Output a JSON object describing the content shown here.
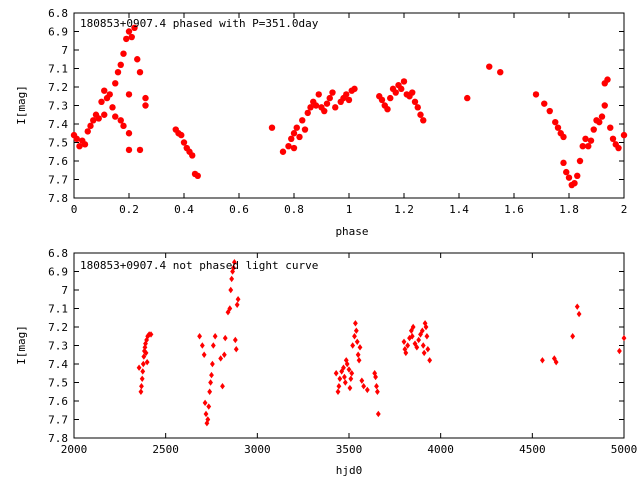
{
  "colors": {
    "marker": "#ff0000",
    "axis": "#000000",
    "background": "#ffffff"
  },
  "chart_data": [
    {
      "type": "scatter",
      "title": "180853+0907.4 phased with P=351.0day",
      "xlabel": "phase",
      "ylabel": "I[mag]",
      "xlim": [
        0,
        2
      ],
      "ylim": [
        6.8,
        7.8
      ],
      "y_inverted": true,
      "grid": false,
      "marker": "filled circle",
      "xticks": [
        "0",
        "0.2",
        "0.4",
        "0.6",
        "0.8",
        "1",
        "1.2",
        "1.4",
        "1.6",
        "1.8",
        "2"
      ],
      "yticks": [
        "6.8",
        "6.9",
        "7",
        "7.1",
        "7.2",
        "7.3",
        "7.4",
        "7.5",
        "7.6",
        "7.7",
        "7.8"
      ],
      "series": [
        {
          "points": [
            [
              0.0,
              7.46
            ],
            [
              0.01,
              7.48
            ],
            [
              0.02,
              7.52
            ],
            [
              0.03,
              7.49
            ],
            [
              0.04,
              7.51
            ],
            [
              0.05,
              7.44
            ],
            [
              0.06,
              7.41
            ],
            [
              0.07,
              7.38
            ],
            [
              0.08,
              7.35
            ],
            [
              0.09,
              7.37
            ],
            [
              0.1,
              7.28
            ],
            [
              0.11,
              7.22
            ],
            [
              0.11,
              7.35
            ],
            [
              0.12,
              7.26
            ],
            [
              0.13,
              7.24
            ],
            [
              0.14,
              7.31
            ],
            [
              0.15,
              7.36
            ],
            [
              0.15,
              7.18
            ],
            [
              0.16,
              7.12
            ],
            [
              0.17,
              7.08
            ],
            [
              0.17,
              7.38
            ],
            [
              0.18,
              7.02
            ],
            [
              0.18,
              7.41
            ],
            [
              0.19,
              6.94
            ],
            [
              0.2,
              6.9
            ],
            [
              0.2,
              7.45
            ],
            [
              0.21,
              6.93
            ],
            [
              0.22,
              6.88
            ],
            [
              0.23,
              7.05
            ],
            [
              0.24,
              7.12
            ],
            [
              0.26,
              7.3
            ],
            [
              0.26,
              7.26
            ],
            [
              0.24,
              7.54
            ],
            [
              0.2,
              7.54
            ],
            [
              0.2,
              7.24
            ],
            [
              0.37,
              7.43
            ],
            [
              0.38,
              7.45
            ],
            [
              0.39,
              7.46
            ],
            [
              0.4,
              7.5
            ],
            [
              0.41,
              7.53
            ],
            [
              0.42,
              7.55
            ],
            [
              0.43,
              7.57
            ],
            [
              0.44,
              7.67
            ],
            [
              0.45,
              7.68
            ],
            [
              0.72,
              7.42
            ],
            [
              0.76,
              7.55
            ],
            [
              0.78,
              7.52
            ],
            [
              0.79,
              7.48
            ],
            [
              0.8,
              7.45
            ],
            [
              0.8,
              7.53
            ],
            [
              0.81,
              7.42
            ],
            [
              0.82,
              7.47
            ],
            [
              0.83,
              7.38
            ],
            [
              0.84,
              7.43
            ],
            [
              0.85,
              7.34
            ],
            [
              0.86,
              7.31
            ],
            [
              0.87,
              7.28
            ],
            [
              0.88,
              7.3
            ],
            [
              0.89,
              7.24
            ],
            [
              0.9,
              7.31
            ],
            [
              0.91,
              7.33
            ],
            [
              0.92,
              7.29
            ],
            [
              0.93,
              7.26
            ],
            [
              0.94,
              7.23
            ],
            [
              0.95,
              7.31
            ],
            [
              0.97,
              7.28
            ],
            [
              0.98,
              7.26
            ],
            [
              0.99,
              7.24
            ],
            [
              1.0,
              7.27
            ],
            [
              1.01,
              7.22
            ],
            [
              1.02,
              7.21
            ],
            [
              1.11,
              7.25
            ],
            [
              1.12,
              7.27
            ],
            [
              1.13,
              7.3
            ],
            [
              1.14,
              7.32
            ],
            [
              1.15,
              7.26
            ],
            [
              1.16,
              7.21
            ],
            [
              1.17,
              7.23
            ],
            [
              1.18,
              7.19
            ],
            [
              1.19,
              7.21
            ],
            [
              1.2,
              7.17
            ],
            [
              1.21,
              7.24
            ],
            [
              1.22,
              7.25
            ],
            [
              1.23,
              7.23
            ],
            [
              1.24,
              7.28
            ],
            [
              1.25,
              7.31
            ],
            [
              1.26,
              7.35
            ],
            [
              1.27,
              7.38
            ],
            [
              1.43,
              7.26
            ],
            [
              1.51,
              7.09
            ],
            [
              1.55,
              7.12
            ],
            [
              1.68,
              7.24
            ],
            [
              1.71,
              7.29
            ],
            [
              1.73,
              7.33
            ],
            [
              1.75,
              7.39
            ],
            [
              1.76,
              7.42
            ],
            [
              1.77,
              7.45
            ],
            [
              1.78,
              7.47
            ],
            [
              1.78,
              7.61
            ],
            [
              1.79,
              7.66
            ],
            [
              1.8,
              7.69
            ],
            [
              1.81,
              7.73
            ],
            [
              1.82,
              7.72
            ],
            [
              1.83,
              7.68
            ],
            [
              1.84,
              7.6
            ],
            [
              1.85,
              7.52
            ],
            [
              1.86,
              7.48
            ],
            [
              1.87,
              7.52
            ],
            [
              1.88,
              7.49
            ],
            [
              1.89,
              7.43
            ],
            [
              1.9,
              7.38
            ],
            [
              1.91,
              7.39
            ],
            [
              1.92,
              7.36
            ],
            [
              1.93,
              7.18
            ],
            [
              1.94,
              7.16
            ],
            [
              1.95,
              7.42
            ],
            [
              1.96,
              7.48
            ],
            [
              1.97,
              7.51
            ],
            [
              1.98,
              7.53
            ],
            [
              2.0,
              7.46
            ],
            [
              1.93,
              7.3
            ]
          ]
        }
      ]
    },
    {
      "type": "scatter",
      "title": "180853+0907.4 not phased light curve",
      "xlabel": "hjd0",
      "ylabel": "I[mag]",
      "xlim": [
        2000,
        5000
      ],
      "ylim": [
        6.8,
        7.8
      ],
      "y_inverted": true,
      "grid": false,
      "marker": "small diamond",
      "xticks": [
        "2000",
        "2500",
        "3000",
        "3500",
        "4000",
        "4500",
        "5000"
      ],
      "yticks": [
        "6.8",
        "6.9",
        "7",
        "7.1",
        "7.2",
        "7.3",
        "7.4",
        "7.5",
        "7.6",
        "7.7",
        "7.8"
      ],
      "series": [
        {
          "points": [
            [
              2355,
              7.42
            ],
            [
              2365,
              7.55
            ],
            [
              2368,
              7.52
            ],
            [
              2372,
              7.48
            ],
            [
              2375,
              7.44
            ],
            [
              2378,
              7.4
            ],
            [
              2381,
              7.36
            ],
            [
              2384,
              7.33
            ],
            [
              2387,
              7.31
            ],
            [
              2390,
              7.29
            ],
            [
              2393,
              7.34
            ],
            [
              2396,
              7.27
            ],
            [
              2399,
              7.39
            ],
            [
              2402,
              7.25
            ],
            [
              2410,
              7.24
            ],
            [
              2420,
              7.24
            ],
            [
              2685,
              7.25
            ],
            [
              2700,
              7.3
            ],
            [
              2710,
              7.35
            ],
            [
              2715,
              7.61
            ],
            [
              2720,
              7.67
            ],
            [
              2725,
              7.72
            ],
            [
              2730,
              7.7
            ],
            [
              2735,
              7.63
            ],
            [
              2740,
              7.55
            ],
            [
              2745,
              7.5
            ],
            [
              2750,
              7.46
            ],
            [
              2755,
              7.4
            ],
            [
              2760,
              7.3
            ],
            [
              2770,
              7.25
            ],
            [
              2800,
              7.37
            ],
            [
              2810,
              7.52
            ],
            [
              2820,
              7.35
            ],
            [
              2825,
              7.26
            ],
            [
              2840,
              7.12
            ],
            [
              2850,
              7.1
            ],
            [
              2855,
              7.0
            ],
            [
              2860,
              6.94
            ],
            [
              2865,
              6.9
            ],
            [
              2870,
              6.88
            ],
            [
              2875,
              6.85
            ],
            [
              2880,
              7.27
            ],
            [
              2885,
              7.32
            ],
            [
              2890,
              7.08
            ],
            [
              2895,
              7.05
            ],
            [
              3430,
              7.45
            ],
            [
              3440,
              7.55
            ],
            [
              3445,
              7.52
            ],
            [
              3450,
              7.48
            ],
            [
              3460,
              7.44
            ],
            [
              3470,
              7.42
            ],
            [
              3475,
              7.47
            ],
            [
              3480,
              7.5
            ],
            [
              3485,
              7.38
            ],
            [
              3490,
              7.4
            ],
            [
              3500,
              7.43
            ],
            [
              3505,
              7.53
            ],
            [
              3510,
              7.48
            ],
            [
              3515,
              7.45
            ],
            [
              3520,
              7.3
            ],
            [
              3530,
              7.25
            ],
            [
              3535,
              7.18
            ],
            [
              3540,
              7.22
            ],
            [
              3545,
              7.28
            ],
            [
              3550,
              7.35
            ],
            [
              3555,
              7.38
            ],
            [
              3560,
              7.31
            ],
            [
              3570,
              7.49
            ],
            [
              3580,
              7.52
            ],
            [
              3600,
              7.54
            ],
            [
              3640,
              7.45
            ],
            [
              3645,
              7.47
            ],
            [
              3650,
              7.52
            ],
            [
              3655,
              7.55
            ],
            [
              3660,
              7.67
            ],
            [
              3800,
              7.28
            ],
            [
              3805,
              7.32
            ],
            [
              3810,
              7.34
            ],
            [
              3820,
              7.3
            ],
            [
              3830,
              7.26
            ],
            [
              3840,
              7.22
            ],
            [
              3845,
              7.25
            ],
            [
              3850,
              7.2
            ],
            [
              3860,
              7.29
            ],
            [
              3870,
              7.31
            ],
            [
              3880,
              7.27
            ],
            [
              3890,
              7.24
            ],
            [
              3900,
              7.22
            ],
            [
              3905,
              7.3
            ],
            [
              3910,
              7.34
            ],
            [
              3915,
              7.18
            ],
            [
              3920,
              7.2
            ],
            [
              3925,
              7.25
            ],
            [
              3930,
              7.32
            ],
            [
              3940,
              7.38
            ],
            [
              4555,
              7.38
            ],
            [
              4620,
              7.37
            ],
            [
              4630,
              7.39
            ],
            [
              4720,
              7.25
            ],
            [
              4745,
              7.09
            ],
            [
              4755,
              7.13
            ],
            [
              4975,
              7.33
            ],
            [
              5000,
              7.26
            ]
          ]
        }
      ]
    }
  ]
}
